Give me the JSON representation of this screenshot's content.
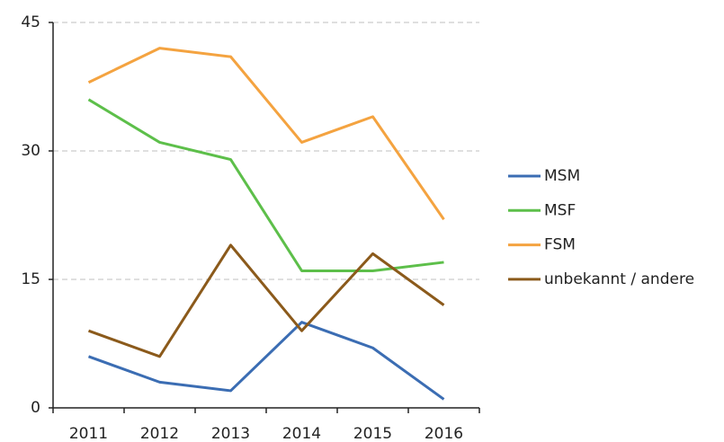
{
  "chart_data": {
    "type": "line",
    "categories": [
      "2011",
      "2012",
      "2013",
      "2014",
      "2015",
      "2016"
    ],
    "series": [
      {
        "name": "MSM",
        "color": "#3b6db3",
        "values": [
          6,
          3,
          2,
          10,
          7,
          1
        ]
      },
      {
        "name": "MSF",
        "color": "#5dbf4a",
        "values": [
          36,
          31,
          29,
          16,
          16,
          17
        ]
      },
      {
        "name": "FSM",
        "color": "#f4a340",
        "values": [
          38,
          42,
          41,
          31,
          34,
          22
        ]
      },
      {
        "name": "unbekannt / andere",
        "color": "#8b5a1b",
        "values": [
          9,
          6,
          19,
          9,
          18,
          12
        ]
      }
    ],
    "ylim": [
      0,
      45
    ],
    "yticks": [
      0,
      15,
      30,
      45
    ],
    "grid": true,
    "legend": "right"
  }
}
